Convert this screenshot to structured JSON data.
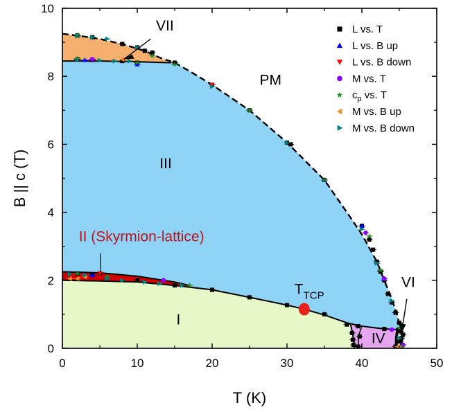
{
  "chart_data": {
    "type": "scatter",
    "xlabel": "T (K)",
    "ylabel": "B || c (T)",
    "xlim": [
      0,
      50
    ],
    "ylim": [
      0,
      10
    ],
    "xticks": [
      "0",
      "10",
      "20",
      "30",
      "40",
      "50"
    ],
    "yticks": [
      "0",
      "2",
      "4",
      "6",
      "8",
      "10"
    ],
    "grid": false,
    "legend_position": "top-right",
    "colors": {
      "region_VII": "#f5b06f",
      "region_III": "#8fd3f6",
      "region_II": "#d40000",
      "region_I": "#e6f7c8",
      "region_IV": "#e6a6ef",
      "tcp_marker": "#e8231a",
      "II_label": "#c0141b"
    },
    "regions": [
      {
        "id": "VII",
        "label": "VII"
      },
      {
        "id": "PM",
        "label": "PM"
      },
      {
        "id": "III",
        "label": "III"
      },
      {
        "id": "II",
        "label": "II (Skyrmion-lattice)"
      },
      {
        "id": "I",
        "label": "I"
      },
      {
        "id": "IV",
        "label": "IV"
      },
      {
        "id": "VI",
        "label": "VI"
      }
    ],
    "tcp": {
      "label_main": "T",
      "label_sub": "TCP",
      "x": 32.3,
      "y": 1.15
    },
    "legend": [
      {
        "label": "L vs. T",
        "marker": "square",
        "color": "#000000"
      },
      {
        "label": "L vs. B up",
        "marker": "triangle-up",
        "color": "#0000ff"
      },
      {
        "label": "L vs. B down",
        "marker": "triangle-down",
        "color": "#ff0000"
      },
      {
        "label": "M  vs. T",
        "marker": "circle",
        "color": "#8b00ff"
      },
      {
        "label_main": "c",
        "label_sub": "p",
        "label_rest": " vs. T",
        "marker": "star",
        "color": "#228b22"
      },
      {
        "label": "M  vs. B up",
        "marker": "triangle-left",
        "color": "#f28c28"
      },
      {
        "label": "M  vs. B down",
        "marker": "triangle-right",
        "color": "#008080"
      }
    ],
    "boundaries": {
      "PM_upper": [
        [
          0,
          9.25
        ],
        [
          2,
          9.2
        ],
        [
          5,
          9.1
        ],
        [
          8,
          8.95
        ],
        [
          11,
          8.75
        ],
        [
          13,
          8.55
        ],
        [
          15,
          8.4
        ],
        [
          17,
          8.15
        ],
        [
          20,
          7.75
        ],
        [
          25,
          7.0
        ],
        [
          30,
          6.05
        ],
        [
          35,
          4.95
        ],
        [
          38,
          4.0
        ],
        [
          40,
          3.35
        ],
        [
          42,
          2.55
        ],
        [
          43,
          2.0
        ],
        [
          44,
          1.45
        ],
        [
          44.7,
          1.0
        ],
        [
          45.2,
          0.5
        ],
        [
          45.5,
          0.0
        ]
      ],
      "VII_lower": [
        [
          0,
          8.45
        ],
        [
          5,
          8.45
        ],
        [
          10,
          8.43
        ],
        [
          14.5,
          8.4
        ]
      ],
      "II_upper": [
        [
          0,
          2.25
        ],
        [
          5,
          2.22
        ],
        [
          10,
          2.12
        ],
        [
          15,
          1.95
        ],
        [
          17,
          1.85
        ]
      ],
      "II_lower": [
        [
          0,
          2.0
        ],
        [
          5,
          1.98
        ],
        [
          10,
          1.95
        ],
        [
          15,
          1.85
        ],
        [
          17,
          1.8
        ]
      ],
      "I_upper": [
        [
          0,
          2.0
        ],
        [
          5,
          1.98
        ],
        [
          10,
          1.95
        ],
        [
          15,
          1.85
        ],
        [
          20,
          1.72
        ],
        [
          25,
          1.5
        ],
        [
          30,
          1.27
        ],
        [
          32.3,
          1.15
        ],
        [
          35,
          0.98
        ],
        [
          38,
          0.75
        ],
        [
          40,
          0.65
        ],
        [
          43,
          0.57
        ],
        [
          45,
          0.55
        ]
      ],
      "I_right": [
        [
          38.5,
          0.7
        ],
        [
          38.8,
          0.4
        ],
        [
          39.0,
          0.0
        ]
      ],
      "IV_region": [
        [
          39.5,
          0.6
        ],
        [
          44.8,
          0.6
        ],
        [
          44.8,
          0.0
        ],
        [
          39.5,
          0.0
        ]
      ],
      "IV_left": [
        [
          40.0,
          0.65
        ],
        [
          39.6,
          0.4
        ],
        [
          39.5,
          0.0
        ]
      ]
    },
    "series": [
      {
        "name": "L vs. T",
        "marker": "square",
        "color": "#000000",
        "points": [
          [
            2,
            9.2
          ],
          [
            4,
            9.15
          ],
          [
            8,
            8.95
          ],
          [
            10,
            8.85
          ],
          [
            11,
            8.75
          ],
          [
            12,
            8.7
          ],
          [
            2,
            8.5
          ],
          [
            4,
            8.48
          ],
          [
            8,
            8.45
          ],
          [
            10,
            8.4
          ],
          [
            15,
            8.4
          ],
          [
            20,
            7.75
          ],
          [
            25,
            7.0
          ],
          [
            30,
            6.05
          ],
          [
            30.5,
            6.0
          ],
          [
            35,
            4.95
          ],
          [
            40,
            3.6
          ],
          [
            41,
            3.2
          ],
          [
            41.5,
            2.9
          ],
          [
            42,
            2.55
          ],
          [
            42.5,
            2.25
          ],
          [
            43,
            2.0
          ],
          [
            43.5,
            1.6
          ],
          [
            44,
            1.35
          ],
          [
            44.5,
            1.05
          ],
          [
            45,
            0.75
          ],
          [
            45.2,
            0.5
          ],
          [
            45.3,
            0.3
          ],
          [
            45.4,
            0.1
          ],
          [
            2,
            2.2
          ],
          [
            4,
            2.15
          ],
          [
            5,
            2.2
          ],
          [
            10,
            2.0
          ],
          [
            15,
            1.85
          ],
          [
            20,
            1.72
          ],
          [
            25,
            1.5
          ],
          [
            30,
            1.27
          ],
          [
            35,
            1.0
          ],
          [
            38,
            0.7
          ],
          [
            39.5,
            0.65
          ],
          [
            43,
            0.57
          ],
          [
            38.7,
            0.45
          ],
          [
            38.8,
            0.25
          ],
          [
            38.9,
            0.1
          ],
          [
            39.5,
            0.05
          ],
          [
            39.7,
            0.35
          ],
          [
            44.5,
            0.05
          ],
          [
            45,
            0.2
          ],
          [
            45.5,
            0.4
          ]
        ]
      },
      {
        "name": "L vs. B up",
        "marker": "triangle-up",
        "color": "#0000ff",
        "points": [
          [
            3,
            8.48
          ],
          [
            10,
            8.35
          ],
          [
            35,
            4.95
          ],
          [
            40,
            3.6
          ],
          [
            4,
            2.15
          ]
        ]
      },
      {
        "name": "L vs. B down",
        "marker": "triangle-down",
        "color": "#ff0000",
        "points": [
          [
            20,
            7.75
          ],
          [
            5,
            2.2
          ]
        ]
      },
      {
        "name": "M  vs. T",
        "marker": "circle",
        "color": "#8b00ff",
        "points": [
          [
            4,
            8.5
          ],
          [
            13.5,
            2.0
          ],
          [
            44,
            0.55
          ],
          [
            45.5,
            0.1
          ],
          [
            40.5,
            3.4
          ],
          [
            43,
            2.05
          ]
        ]
      },
      {
        "name": "cp vs. T",
        "marker": "star",
        "color": "#228b22",
        "points": [
          [
            2,
            9.22
          ],
          [
            2,
            8.52
          ],
          [
            2,
            2.2
          ],
          [
            6,
            2.1
          ],
          [
            10,
            8.4
          ],
          [
            12,
            8.6
          ],
          [
            15,
            8.35
          ],
          [
            17,
            1.85
          ],
          [
            25,
            7.0
          ],
          [
            35,
            4.95
          ],
          [
            41,
            3.3
          ],
          [
            42.5,
            2.3
          ],
          [
            45,
            0.6
          ],
          [
            45.3,
            0.05
          ]
        ]
      },
      {
        "name": "M  vs. B up",
        "marker": "triangle-left",
        "color": "#f28c28",
        "points": [
          [
            1,
            2.05
          ],
          [
            2,
            2.05
          ],
          [
            3,
            2.1
          ],
          [
            8,
            8.5
          ],
          [
            44.8,
            0.05
          ]
        ]
      },
      {
        "name": "M  vs. B down",
        "marker": "triangle-right",
        "color": "#008080",
        "points": [
          [
            2,
            9.18
          ],
          [
            4,
            9.15
          ],
          [
            6,
            9.1
          ],
          [
            10,
            8.85
          ],
          [
            2,
            8.48
          ],
          [
            5,
            8.47
          ],
          [
            7,
            8.45
          ],
          [
            9,
            8.45
          ],
          [
            1,
            2.18
          ],
          [
            3,
            2.15
          ],
          [
            6,
            2.05
          ],
          [
            8,
            2.0
          ],
          [
            11,
            1.95
          ],
          [
            13,
            1.9
          ],
          [
            16,
            1.85
          ],
          [
            20,
            7.7
          ],
          [
            30,
            6.05
          ],
          [
            40,
            3.5
          ],
          [
            42,
            2.5
          ],
          [
            44,
            1.4
          ],
          [
            45,
            0.3
          ]
        ]
      }
    ]
  }
}
